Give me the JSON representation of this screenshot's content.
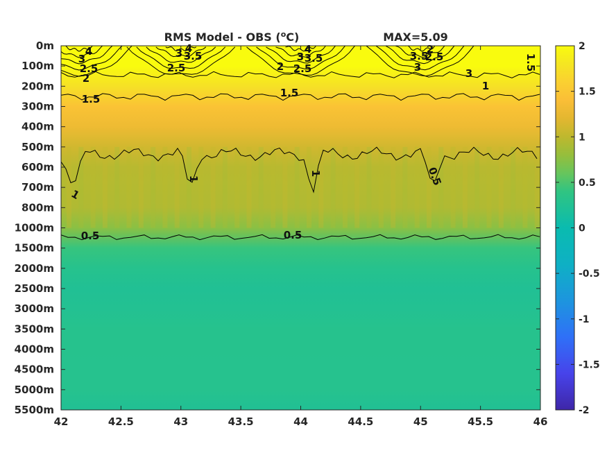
{
  "chart_data": {
    "type": "heatmap",
    "title": "RMS Model - OBS (",
    "title_unit_sup": "o",
    "title_unit_tail": "C)",
    "max_label": "MAX=5.09",
    "x_ticks": [
      42,
      42.5,
      43,
      43.5,
      44,
      44.5,
      45,
      45.5,
      46
    ],
    "x_tick_labels": [
      "42",
      "42.5",
      "43",
      "43.5",
      "44",
      "44.5",
      "45",
      "45.5",
      "46"
    ],
    "xlim": [
      42,
      46
    ],
    "y_tick_labels": [
      "0m",
      "100m",
      "200m",
      "300m",
      "400m",
      "500m",
      "600m",
      "700m",
      "800m",
      "1000m",
      "1500m",
      "2000m",
      "2500m",
      "3000m",
      "3500m",
      "4000m",
      "4500m",
      "5000m",
      "5500m"
    ],
    "color_limits": [
      -2,
      2
    ],
    "colorbar_ticks": [
      2,
      1.5,
      1,
      0.5,
      0,
      -0.5,
      -1,
      -1.5,
      -2
    ],
    "colorbar_tick_labels": [
      "2",
      "1.5",
      "1",
      "0.5",
      "0",
      "-0.5",
      "-1",
      "-1.5",
      "-2"
    ],
    "colormap": "parula",
    "depth_profile": [
      {
        "level": "0m",
        "value": 2.0
      },
      {
        "level": "100m",
        "value": 2.0
      },
      {
        "level": "200m",
        "value": 1.75
      },
      {
        "level": "300m",
        "value": 1.45
      },
      {
        "level": "400m",
        "value": 1.3
      },
      {
        "level": "500m",
        "value": 1.1
      },
      {
        "level": "600m",
        "value": 0.97
      },
      {
        "level": "700m",
        "value": 0.95
      },
      {
        "level": "800m",
        "value": 0.93
      },
      {
        "level": "1000m",
        "value": 0.75
      },
      {
        "level": "1500m",
        "value": 0.42
      },
      {
        "level": "2000m",
        "value": 0.3
      },
      {
        "level": "2500m",
        "value": 0.24
      },
      {
        "level": "3000m",
        "value": 0.26
      },
      {
        "level": "3500m",
        "value": 0.3
      },
      {
        "level": "4000m",
        "value": 0.3
      },
      {
        "level": "4500m",
        "value": 0.29
      },
      {
        "level": "5000m",
        "value": 0.29
      },
      {
        "level": "5500m",
        "value": 0.24
      }
    ],
    "contour_levels": [
      0.5,
      1,
      1.5,
      2,
      2.5,
      3,
      3.5,
      4
    ],
    "contour_label_texts": [
      "4",
      "3",
      "2.5",
      "2",
      "3",
      "3.5",
      "2.5",
      "4",
      "2",
      "3",
      "3.5",
      "2.5",
      "4",
      "3",
      "3.5",
      "2.5",
      "2",
      "3",
      "1.5",
      "1.5",
      "1.5",
      "1",
      "1",
      "1",
      "1",
      "0.5",
      "0.5",
      "0.5"
    ]
  }
}
